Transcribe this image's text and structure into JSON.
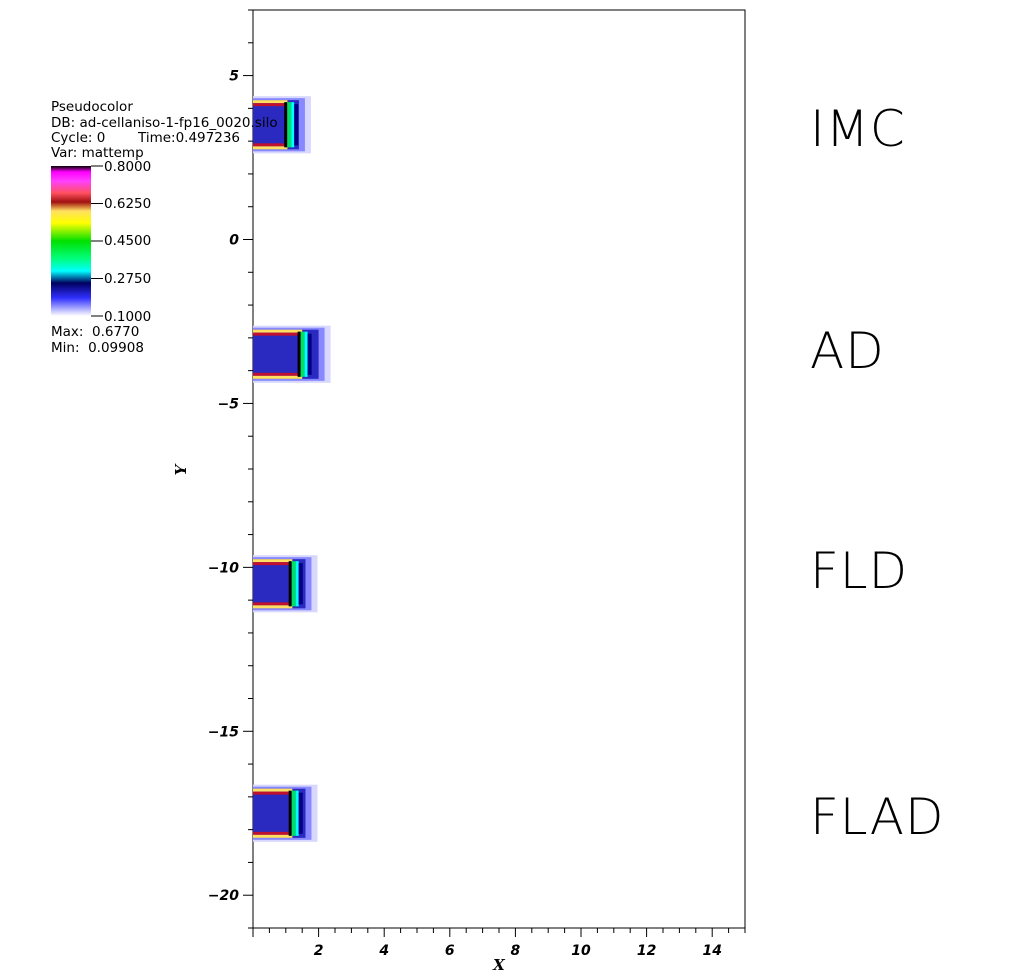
{
  "legend": {
    "plot_type": "Pseudocolor",
    "db": "DB: ad-cellaniso-1-fp16_0020.silo",
    "cycle": "Cycle: 0",
    "time": "Time:0.497236",
    "var": "Var: mattemp",
    "ticks": [
      "0.8000",
      "0.6250",
      "0.4500",
      "0.2750",
      "0.1000"
    ],
    "max": "Max:  0.6770",
    "min": "Min:  0.09908"
  },
  "labels": [
    "IMC",
    "AD",
    "FLD",
    "FLAD"
  ],
  "chart_data": {
    "type": "heatmap",
    "xlabel": "X",
    "ylabel": "Y",
    "xlim": [
      0,
      15
    ],
    "ylim": [
      -21,
      7
    ],
    "x_ticks": [
      2,
      4,
      6,
      8,
      10,
      12,
      14
    ],
    "y_ticks": [
      5,
      0,
      -5,
      -10,
      -15,
      -20
    ],
    "colormap": "hot_desaturated",
    "value_range": [
      0.1,
      0.8
    ],
    "regions": [
      {
        "label": "IMC",
        "y_center": 3.5,
        "x_extent": [
          0,
          1.4
        ]
      },
      {
        "label": "AD",
        "y_center": -3.5,
        "x_extent": [
          0,
          2.0
        ]
      },
      {
        "label": "FLD",
        "y_center": -10.5,
        "x_extent": [
          0,
          1.6
        ]
      },
      {
        "label": "FLAD",
        "y_center": -17.5,
        "x_extent": [
          0,
          1.6
        ]
      }
    ]
  }
}
